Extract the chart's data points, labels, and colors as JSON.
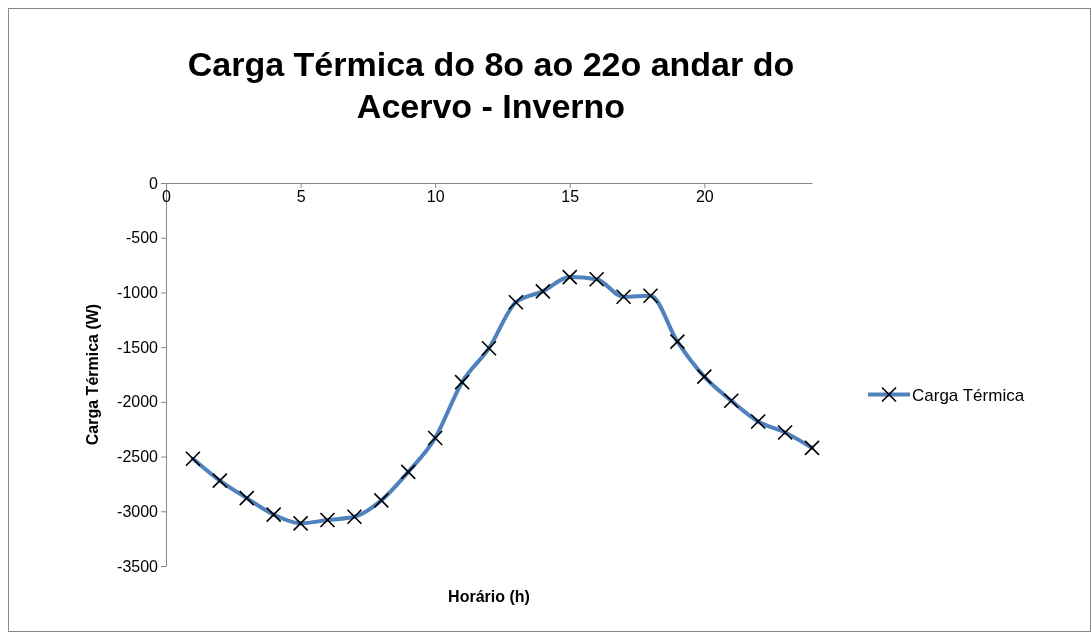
{
  "chart_data": {
    "type": "line",
    "title": "Carga Térmica do 8o ao 22o andar do Acervo - Inverno",
    "xlabel": "Horário (h)",
    "ylabel": "Carga Térmica (W)",
    "x": [
      1,
      2,
      3,
      4,
      5,
      6,
      7,
      8,
      9,
      10,
      11,
      12,
      13,
      14,
      15,
      16,
      17,
      18,
      19,
      20,
      21,
      22,
      23,
      24
    ],
    "series": [
      {
        "name": "Carga Térmica",
        "color": "#4f81bd",
        "values": [
          -2520,
          -2720,
          -2880,
          -3030,
          -3110,
          -3080,
          -3050,
          -2900,
          -2640,
          -2330,
          -1820,
          -1510,
          -1090,
          -990,
          -860,
          -880,
          -1040,
          -1030,
          -1450,
          -1770,
          -1990,
          -2180,
          -2280,
          -2420
        ]
      }
    ],
    "xlim": [
      0,
      24
    ],
    "xticks": [
      0,
      5,
      10,
      15,
      20
    ],
    "ylim": [
      -3500,
      0
    ],
    "yticks": [
      0,
      -500,
      -1000,
      -1500,
      -2000,
      -2500,
      -3000,
      -3500
    ],
    "grid": false,
    "legend": "right",
    "marker": "cross",
    "line_style": "solid"
  }
}
